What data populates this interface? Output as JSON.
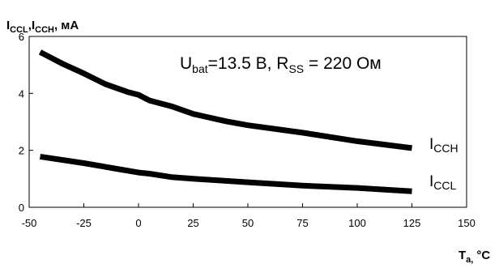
{
  "chart_data": {
    "type": "line",
    "xlabel": {
      "main": "T",
      "sub": "a,",
      "unit": "°C"
    },
    "ylabel": {
      "main1": "I",
      "sub1": "CCL",
      "sep": ",",
      "main2": "I",
      "sub2": "CCH",
      "unit": ", мА"
    },
    "xlim": [
      -50,
      150
    ],
    "ylim": [
      0,
      6
    ],
    "xticks": [
      "-50",
      "-25",
      "0",
      "25",
      "50",
      "75",
      "100",
      "125",
      "150"
    ],
    "yticks": [
      "0",
      "2",
      "4",
      "6"
    ],
    "grid": false,
    "annotation": {
      "U_main": "U",
      "U_sub": "bat",
      "U_val": "=13.5 В, ",
      "R_main": "R",
      "R_sub": "SS",
      "R_val": " = 220 Ом"
    },
    "series": [
      {
        "name": "CCH",
        "label_main": "I",
        "label_sub": "CCH",
        "x": [
          -45,
          -35,
          -25,
          -15,
          -5,
          0,
          5,
          15,
          25,
          40,
          50,
          75,
          100,
          125
        ],
        "y": [
          5.45,
          5.05,
          4.7,
          4.32,
          4.05,
          3.95,
          3.75,
          3.55,
          3.28,
          3.02,
          2.88,
          2.62,
          2.32,
          2.08
        ]
      },
      {
        "name": "CCL",
        "label_main": "I",
        "label_sub": "CCL",
        "x": [
          -45,
          -25,
          -10,
          0,
          5,
          15,
          25,
          50,
          75,
          100,
          125
        ],
        "y": [
          1.78,
          1.55,
          1.35,
          1.22,
          1.18,
          1.06,
          1.0,
          0.88,
          0.76,
          0.68,
          0.56
        ]
      }
    ]
  }
}
